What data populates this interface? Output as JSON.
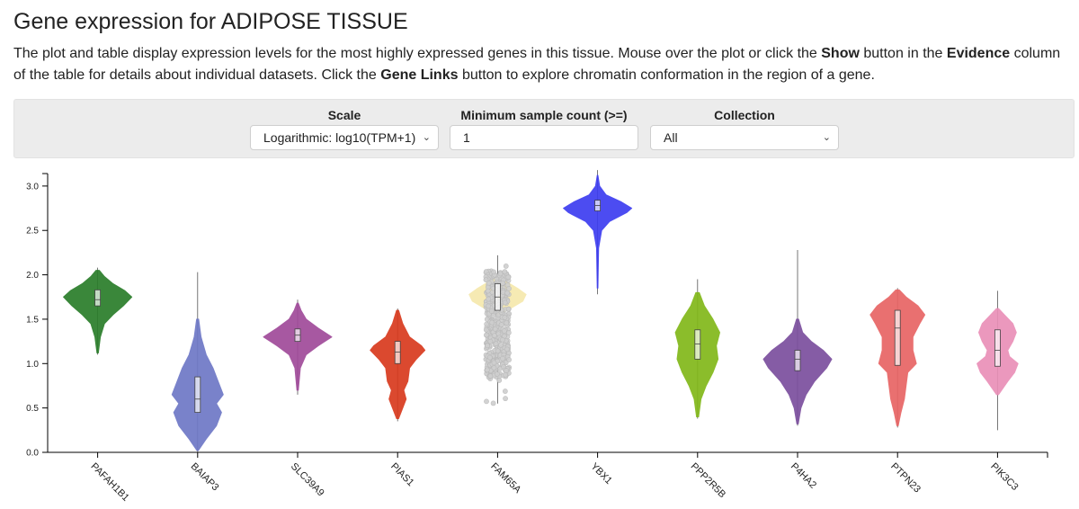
{
  "page": {
    "title": "Gene expression for ADIPOSE TISSUE",
    "desc_1": "The plot and table display expression levels for the most highly expressed genes in this tissue. Mouse over the plot or click the ",
    "desc_show": "Show",
    "desc_2": " button in the ",
    "desc_evidence": "Evidence",
    "desc_3": " column of the table for details about individual datasets. Click the ",
    "desc_genelinks": "Gene Links",
    "desc_4": " button to explore chromatin conformation in the region of a gene."
  },
  "controls": {
    "scale_label": "Scale",
    "scale_value": "Logarithmic: log10(TPM+1)",
    "min_label": "Minimum sample count (>=)",
    "min_value": "1",
    "collection_label": "Collection",
    "collection_value": "All"
  },
  "icons": {
    "select_arrow": "chevron-down-icon"
  },
  "chart_data": {
    "type": "violin",
    "ylim": [
      0,
      3.1
    ],
    "yticks": [
      "0.0",
      "0.5",
      "1.0",
      "1.5",
      "2.0",
      "2.5",
      "3.0"
    ],
    "categories": [
      "PAFAH1B1",
      "BAIAP3",
      "SLC39A9",
      "PIAS1",
      "FAM65A",
      "YBX1",
      "PPP2R5B",
      "P4HA2",
      "PTPN23",
      "PIK3C3"
    ],
    "series": [
      {
        "category": "PAFAH1B1",
        "color": "#2a7d2a",
        "min": 1.1,
        "max": 2.08,
        "q1": 1.65,
        "median": 1.72,
        "q3": 1.83,
        "profile": [
          [
            1.12,
            0.02
          ],
          [
            1.3,
            0.08
          ],
          [
            1.45,
            0.2
          ],
          [
            1.55,
            0.45
          ],
          [
            1.65,
            0.75
          ],
          [
            1.75,
            1.0
          ],
          [
            1.82,
            0.8
          ],
          [
            1.9,
            0.45
          ],
          [
            1.98,
            0.2
          ],
          [
            2.05,
            0.05
          ]
        ]
      },
      {
        "category": "BAIAP3",
        "color": "#6e78c6",
        "min": 0.0,
        "max": 2.03,
        "q1": 0.45,
        "median": 0.6,
        "q3": 0.85,
        "profile": [
          [
            0.02,
            0.02
          ],
          [
            0.15,
            0.25
          ],
          [
            0.3,
            0.55
          ],
          [
            0.45,
            0.7
          ],
          [
            0.55,
            0.55
          ],
          [
            0.65,
            0.75
          ],
          [
            0.8,
            0.6
          ],
          [
            0.95,
            0.45
          ],
          [
            1.1,
            0.25
          ],
          [
            1.3,
            0.1
          ],
          [
            1.5,
            0.03
          ]
        ]
      },
      {
        "category": "SLC39A9",
        "color": "#a04a9a",
        "min": 0.65,
        "max": 1.72,
        "q1": 1.25,
        "median": 1.32,
        "q3": 1.39,
        "profile": [
          [
            0.7,
            0.02
          ],
          [
            0.95,
            0.08
          ],
          [
            1.1,
            0.25
          ],
          [
            1.2,
            0.6
          ],
          [
            1.3,
            1.0
          ],
          [
            1.4,
            0.6
          ],
          [
            1.5,
            0.25
          ],
          [
            1.6,
            0.1
          ],
          [
            1.68,
            0.02
          ]
        ]
      },
      {
        "category": "PIAS1",
        "color": "#d83a1e",
        "min": 0.35,
        "max": 1.62,
        "q1": 1.0,
        "median": 1.13,
        "q3": 1.25,
        "profile": [
          [
            0.38,
            0.03
          ],
          [
            0.5,
            0.15
          ],
          [
            0.6,
            0.25
          ],
          [
            0.7,
            0.18
          ],
          [
            0.8,
            0.3
          ],
          [
            0.95,
            0.35
          ],
          [
            1.05,
            0.55
          ],
          [
            1.15,
            0.8
          ],
          [
            1.2,
            0.7
          ],
          [
            1.3,
            0.35
          ],
          [
            1.45,
            0.15
          ],
          [
            1.6,
            0.03
          ]
        ]
      },
      {
        "category": "FAM65A",
        "color": "#f5e6a6",
        "min": 0.55,
        "max": 2.22,
        "q1": 1.6,
        "median": 1.75,
        "q3": 1.9,
        "profile": [
          [
            1.55,
            0.05
          ],
          [
            1.62,
            0.4
          ],
          [
            1.7,
            0.75
          ],
          [
            1.78,
            0.85
          ],
          [
            1.85,
            0.6
          ],
          [
            1.92,
            0.3
          ],
          [
            1.98,
            0.05
          ]
        ]
      },
      {
        "category": "YBX1",
        "color": "#3d3df0",
        "min": 1.78,
        "max": 3.18,
        "q1": 2.72,
        "median": 2.78,
        "q3": 2.84,
        "profile": [
          [
            1.85,
            0.01
          ],
          [
            2.3,
            0.03
          ],
          [
            2.5,
            0.12
          ],
          [
            2.6,
            0.35
          ],
          [
            2.7,
            0.85
          ],
          [
            2.75,
            1.0
          ],
          [
            2.82,
            0.7
          ],
          [
            2.9,
            0.25
          ],
          [
            3.0,
            0.06
          ],
          [
            3.12,
            0.01
          ]
        ]
      },
      {
        "category": "PPP2R5B",
        "color": "#82b81a",
        "min": 0.38,
        "max": 1.95,
        "q1": 1.05,
        "median": 1.22,
        "q3": 1.38,
        "profile": [
          [
            0.4,
            0.03
          ],
          [
            0.6,
            0.1
          ],
          [
            0.75,
            0.25
          ],
          [
            0.9,
            0.45
          ],
          [
            1.05,
            0.6
          ],
          [
            1.2,
            0.55
          ],
          [
            1.35,
            0.65
          ],
          [
            1.5,
            0.45
          ],
          [
            1.65,
            0.2
          ],
          [
            1.8,
            0.05
          ]
        ]
      },
      {
        "category": "P4HA2",
        "color": "#7b4f9e",
        "min": 0.3,
        "max": 2.28,
        "q1": 0.92,
        "median": 1.05,
        "q3": 1.15,
        "profile": [
          [
            0.32,
            0.02
          ],
          [
            0.5,
            0.1
          ],
          [
            0.65,
            0.25
          ],
          [
            0.8,
            0.5
          ],
          [
            0.95,
            0.85
          ],
          [
            1.05,
            1.0
          ],
          [
            1.15,
            0.75
          ],
          [
            1.25,
            0.4
          ],
          [
            1.35,
            0.15
          ],
          [
            1.5,
            0.03
          ]
        ]
      },
      {
        "category": "PTPN23",
        "color": "#e86464",
        "min": 0.28,
        "max": 1.85,
        "q1": 0.98,
        "median": 1.4,
        "q3": 1.6,
        "profile": [
          [
            0.3,
            0.02
          ],
          [
            0.45,
            0.1
          ],
          [
            0.6,
            0.2
          ],
          [
            0.75,
            0.25
          ],
          [
            0.9,
            0.3
          ],
          [
            1.0,
            0.55
          ],
          [
            1.15,
            0.45
          ],
          [
            1.3,
            0.45
          ],
          [
            1.45,
            0.65
          ],
          [
            1.55,
            0.8
          ],
          [
            1.65,
            0.6
          ],
          [
            1.75,
            0.25
          ],
          [
            1.83,
            0.05
          ]
        ]
      },
      {
        "category": "PIK3C3",
        "color": "#ea90b8",
        "min": 0.25,
        "max": 1.82,
        "q1": 0.97,
        "median": 1.15,
        "q3": 1.38,
        "profile": [
          [
            0.65,
            0.03
          ],
          [
            0.8,
            0.3
          ],
          [
            0.9,
            0.5
          ],
          [
            1.0,
            0.6
          ],
          [
            1.08,
            0.35
          ],
          [
            1.15,
            0.3
          ],
          [
            1.25,
            0.45
          ],
          [
            1.35,
            0.55
          ],
          [
            1.45,
            0.45
          ],
          [
            1.55,
            0.2
          ],
          [
            1.62,
            0.03
          ]
        ]
      }
    ]
  }
}
